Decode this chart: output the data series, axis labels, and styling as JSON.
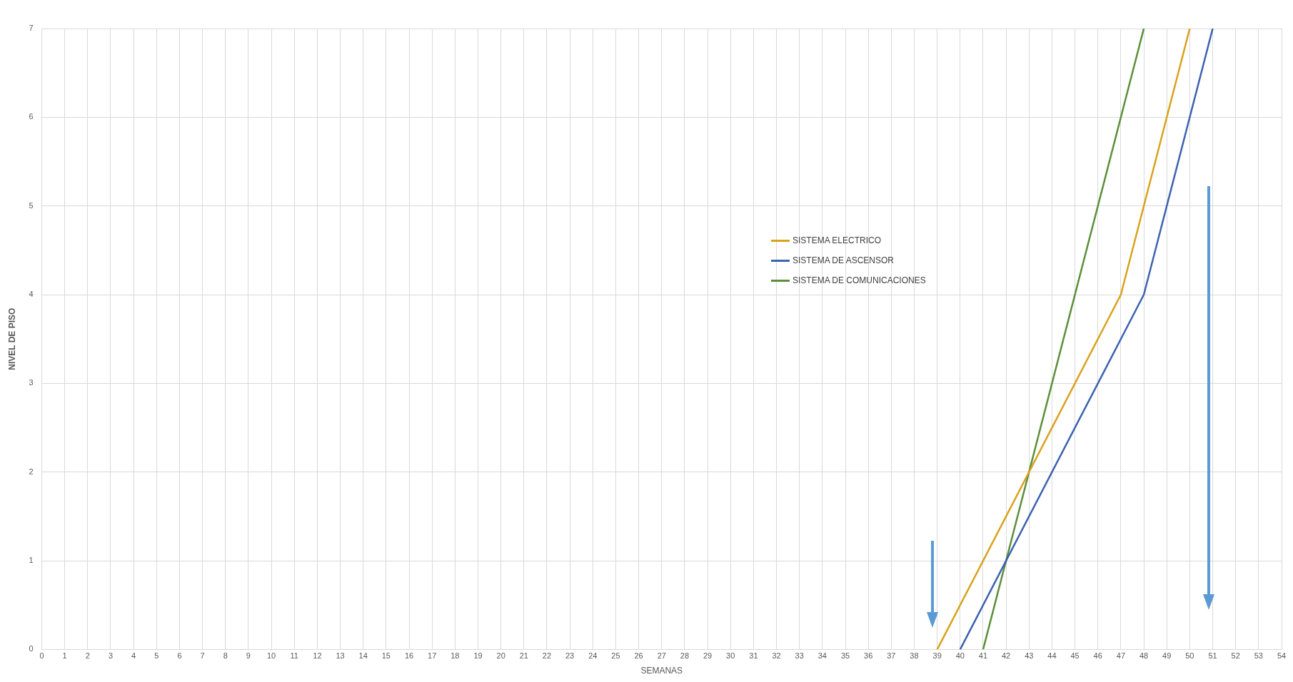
{
  "chart_data": {
    "type": "line",
    "xlabel": "SEMANAS",
    "ylabel": "NIVEL DE PISO",
    "xlim": [
      0,
      54
    ],
    "xticks": [
      0,
      1,
      2,
      3,
      4,
      5,
      6,
      7,
      8,
      9,
      10,
      11,
      12,
      13,
      14,
      15,
      16,
      17,
      18,
      19,
      20,
      21,
      22,
      23,
      24,
      25,
      26,
      27,
      28,
      29,
      30,
      31,
      32,
      33,
      34,
      35,
      36,
      37,
      38,
      39,
      40,
      41,
      42,
      43,
      44,
      45,
      46,
      47,
      48,
      49,
      50,
      51,
      52,
      53,
      54
    ],
    "ylim": [
      0,
      7
    ],
    "yticks": [
      0,
      1,
      2,
      3,
      4,
      5,
      6,
      7
    ],
    "grid": true,
    "legend": "right",
    "marker": "none",
    "line_style": "solid",
    "series": [
      {
        "name": "SISTEMA ELECTRICO",
        "color": "#d9a21b",
        "x": [
          39,
          47,
          50
        ],
        "values": [
          0,
          4,
          7
        ]
      },
      {
        "name": "SISTEMA DE ASCENSOR",
        "color": "#3c62b0",
        "x": [
          40,
          48,
          51
        ],
        "values": [
          0,
          4,
          7
        ]
      },
      {
        "name": "SISTEMA DE COMUNICACIONES",
        "color": "#5b8f3a",
        "x": [
          41,
          48
        ],
        "values": [
          0,
          7
        ]
      }
    ]
  }
}
